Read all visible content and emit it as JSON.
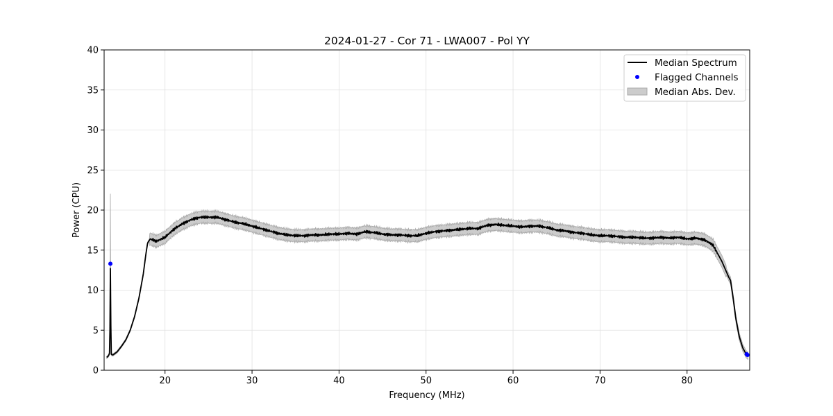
{
  "chart_data": {
    "type": "line",
    "title": "2024-01-27 - Cor 71 - LWA007 - Pol YY",
    "xlabel": "Frequency (MHz)",
    "ylabel": "Power (CPU)",
    "xlim": [
      13.0,
      87.2
    ],
    "ylim": [
      0,
      40
    ],
    "xticks": [
      20,
      30,
      40,
      50,
      60,
      70,
      80
    ],
    "yticks": [
      0,
      5,
      10,
      15,
      20,
      25,
      30,
      35,
      40
    ],
    "grid": true,
    "legend_position": "upper right",
    "colors": {
      "median": "#000000",
      "flagged": "#0000ff",
      "mad_fill": "#cccccc",
      "mad_edge": "#a8a8a8",
      "grid": "#e0e0e0"
    },
    "series": [
      {
        "name": "Median Spectrum",
        "kind": "line",
        "points": [
          [
            13.3,
            1.6
          ],
          [
            13.5,
            1.8
          ],
          [
            13.65,
            2.2
          ],
          [
            13.72,
            12.7
          ],
          [
            13.8,
            2.0
          ],
          [
            14.0,
            1.9
          ],
          [
            14.5,
            2.3
          ],
          [
            15.0,
            3.0
          ],
          [
            15.5,
            3.8
          ],
          [
            16.0,
            5.0
          ],
          [
            16.5,
            6.7
          ],
          [
            17.0,
            9.0
          ],
          [
            17.5,
            12.0
          ],
          [
            17.8,
            14.5
          ],
          [
            18.0,
            15.9
          ],
          [
            18.3,
            16.4
          ],
          [
            19.0,
            16.1
          ],
          [
            20.0,
            16.6
          ],
          [
            21.0,
            17.6
          ],
          [
            22.0,
            18.3
          ],
          [
            23.0,
            18.8
          ],
          [
            24.0,
            19.1
          ],
          [
            25.0,
            19.1
          ],
          [
            26.0,
            19.1
          ],
          [
            27.0,
            18.8
          ],
          [
            28.0,
            18.5
          ],
          [
            29.0,
            18.3
          ],
          [
            30.0,
            18.0
          ],
          [
            31.0,
            17.7
          ],
          [
            32.0,
            17.4
          ],
          [
            33.0,
            17.1
          ],
          [
            34.0,
            16.9
          ],
          [
            35.0,
            16.8
          ],
          [
            36.0,
            16.8
          ],
          [
            37.0,
            16.9
          ],
          [
            38.0,
            16.9
          ],
          [
            39.0,
            17.0
          ],
          [
            40.0,
            17.0
          ],
          [
            41.0,
            17.1
          ],
          [
            42.0,
            17.0
          ],
          [
            43.0,
            17.3
          ],
          [
            44.0,
            17.2
          ],
          [
            45.0,
            17.0
          ],
          [
            46.0,
            16.9
          ],
          [
            47.0,
            16.9
          ],
          [
            48.0,
            16.8
          ],
          [
            49.0,
            16.8
          ],
          [
            50.0,
            17.1
          ],
          [
            51.0,
            17.3
          ],
          [
            52.0,
            17.4
          ],
          [
            53.0,
            17.5
          ],
          [
            54.0,
            17.6
          ],
          [
            55.0,
            17.7
          ],
          [
            56.0,
            17.7
          ],
          [
            57.0,
            18.1
          ],
          [
            58.0,
            18.2
          ],
          [
            59.0,
            18.1
          ],
          [
            60.0,
            18.0
          ],
          [
            61.0,
            17.9
          ],
          [
            62.0,
            18.0
          ],
          [
            63.0,
            18.0
          ],
          [
            64.0,
            17.8
          ],
          [
            65.0,
            17.5
          ],
          [
            66.0,
            17.4
          ],
          [
            67.0,
            17.2
          ],
          [
            68.0,
            17.1
          ],
          [
            69.0,
            16.9
          ],
          [
            70.0,
            16.8
          ],
          [
            71.0,
            16.8
          ],
          [
            72.0,
            16.7
          ],
          [
            73.0,
            16.6
          ],
          [
            74.0,
            16.6
          ],
          [
            75.0,
            16.5
          ],
          [
            76.0,
            16.5
          ],
          [
            77.0,
            16.6
          ],
          [
            78.0,
            16.5
          ],
          [
            79.0,
            16.6
          ],
          [
            80.0,
            16.4
          ],
          [
            81.0,
            16.5
          ],
          [
            82.0,
            16.3
          ],
          [
            83.0,
            15.6
          ],
          [
            84.0,
            13.6
          ],
          [
            84.8,
            11.6
          ],
          [
            85.0,
            11.2
          ],
          [
            85.3,
            9.0
          ],
          [
            85.6,
            6.5
          ],
          [
            86.0,
            4.2
          ],
          [
            86.4,
            2.8
          ],
          [
            86.8,
            2.0
          ],
          [
            87.0,
            1.8
          ]
        ]
      },
      {
        "name": "Flagged Channels",
        "kind": "scatter",
        "points": [
          [
            13.72,
            13.3
          ],
          [
            86.85,
            2.0
          ],
          [
            86.95,
            1.9
          ]
        ]
      },
      {
        "name": "Median Abs. Dev.",
        "kind": "band",
        "halfwidth": 0.75,
        "spike": {
          "x": 13.72,
          "upper": 22.0
        }
      }
    ]
  }
}
